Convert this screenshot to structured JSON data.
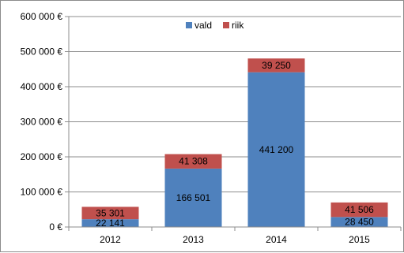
{
  "chart_data": {
    "type": "bar",
    "stacked": true,
    "categories": [
      "2012",
      "2013",
      "2014",
      "2015"
    ],
    "series": [
      {
        "name": "vald",
        "values": [
          22141,
          166501,
          441200,
          28450
        ],
        "labels": [
          "22 141",
          "166 501",
          "441 200",
          "28 450"
        ],
        "color": "#4f81bd"
      },
      {
        "name": "riik",
        "values": [
          35301,
          41308,
          39250,
          41506
        ],
        "labels": [
          "35 301",
          "41 308",
          "39 250",
          "41 506"
        ],
        "color": "#c0504d"
      }
    ],
    "y_ticks": [
      {
        "value": 0,
        "label": "0 €"
      },
      {
        "value": 100000,
        "label": "100 000 €"
      },
      {
        "value": 200000,
        "label": "200 000 €"
      },
      {
        "value": 300000,
        "label": "300 000 €"
      },
      {
        "value": 400000,
        "label": "400 000 €"
      },
      {
        "value": 500000,
        "label": "500 000 €"
      },
      {
        "value": 600000,
        "label": "600 000 €"
      }
    ],
    "ylim": [
      0,
      600000
    ],
    "grid": true,
    "legend_position": "top-center"
  }
}
